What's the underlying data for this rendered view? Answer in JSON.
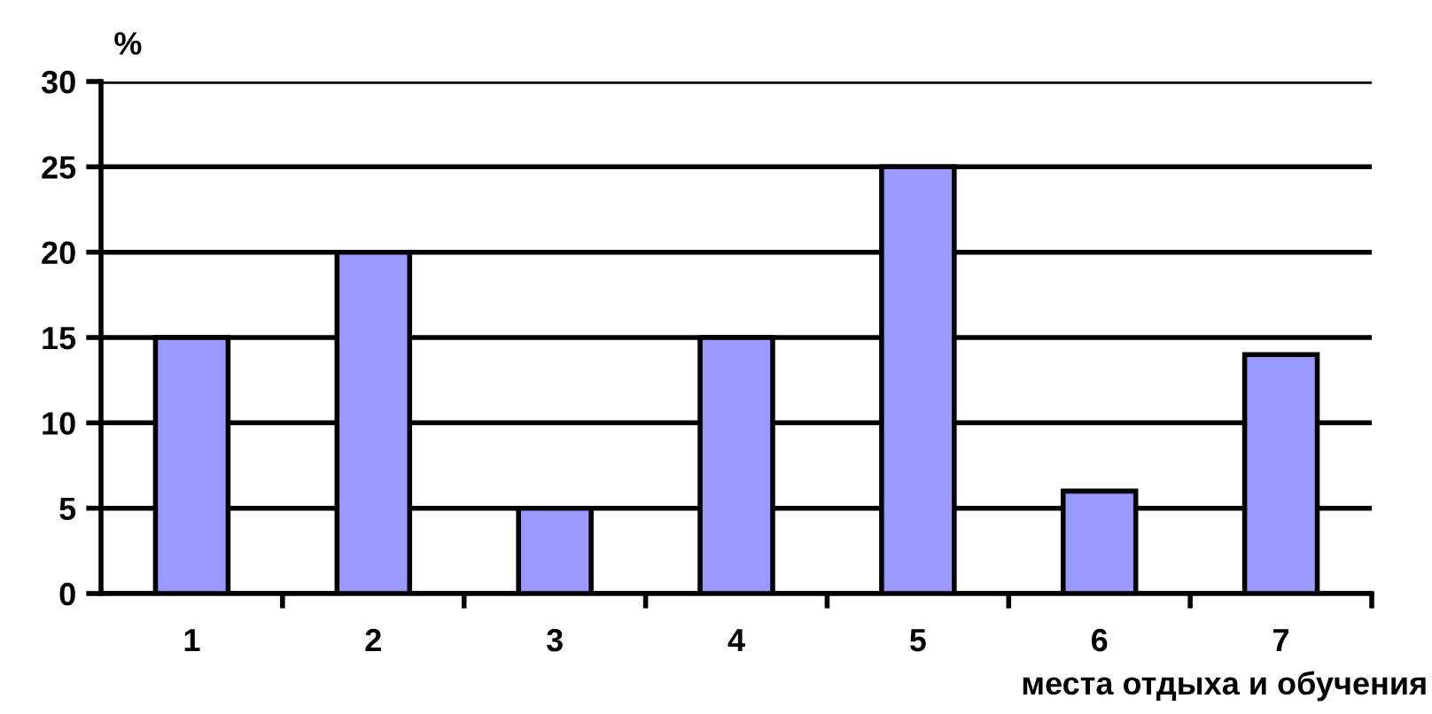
{
  "chart_data": {
    "type": "bar",
    "xlabel": "места отдыха и обучения",
    "ylabel": "%",
    "categories": [
      "1",
      "2",
      "3",
      "4",
      "5",
      "6",
      "7"
    ],
    "values": [
      15,
      20,
      5,
      15,
      25,
      6,
      14
    ],
    "color": "#9999ff",
    "ylim": [
      0,
      30
    ],
    "yticks": [
      0,
      5,
      10,
      15,
      20,
      25,
      30
    ],
    "grid": "y",
    "legend": false
  }
}
